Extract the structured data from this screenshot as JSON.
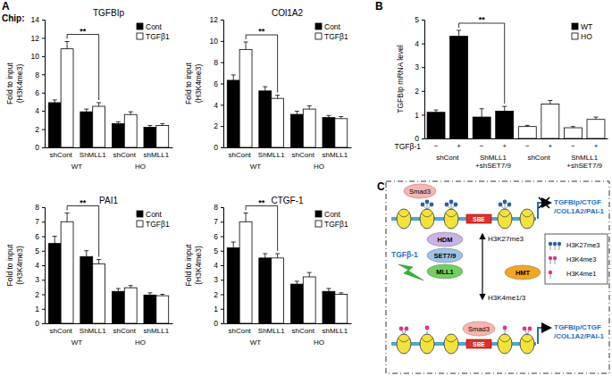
{
  "figure": {
    "panel_labels": [
      "A",
      "B",
      "C"
    ],
    "method_label": "Chip:"
  },
  "chart_data": [
    {
      "type": "bar",
      "title": "TGFBIp",
      "y_label": [
        "Fold to input",
        "(H3K4me3)"
      ],
      "categories": [
        "shCont",
        "ShMLL1",
        "shCont",
        "shMLL1"
      ],
      "groups": [
        {
          "label": "WT",
          "span": [
            0,
            1
          ]
        },
        {
          "label": "HO",
          "span": [
            2,
            3
          ]
        }
      ],
      "series": [
        {
          "name": "Cont",
          "color": "#000000",
          "values": [
            4.9,
            3.9,
            2.6,
            2.2
          ],
          "errors": [
            0.3,
            0.3,
            0.2,
            0.2
          ]
        },
        {
          "name": "TGFβ1",
          "color": "#ffffff",
          "values": [
            10.8,
            4.5,
            3.6,
            2.4
          ],
          "errors": [
            0.8,
            0.4,
            0.3,
            0.2
          ]
        }
      ],
      "ylim": [
        0,
        14
      ],
      "yticks": [
        0,
        2,
        4,
        6,
        8,
        10,
        12,
        14
      ],
      "legend": "top-right",
      "significance": [
        {
          "label": "**",
          "series": 1,
          "categories": [
            0,
            1
          ]
        }
      ]
    },
    {
      "type": "bar",
      "title": "COl1A2",
      "y_label": [
        "Fold to input",
        "(H3K4me3)"
      ],
      "categories": [
        "shCont",
        "ShMLL1",
        "shCont",
        "shMLL1"
      ],
      "groups": [
        {
          "label": "WT",
          "span": [
            0,
            1
          ]
        },
        {
          "label": "HO",
          "span": [
            2,
            3
          ]
        }
      ],
      "series": [
        {
          "name": "Cont",
          "color": "#000000",
          "values": [
            6.3,
            5.3,
            3.1,
            2.8
          ],
          "errors": [
            0.5,
            0.4,
            0.3,
            0.2
          ]
        },
        {
          "name": "TGFβ1",
          "color": "#ffffff",
          "values": [
            9.2,
            4.6,
            3.6,
            2.7
          ],
          "errors": [
            0.7,
            0.3,
            0.3,
            0.2
          ]
        }
      ],
      "ylim": [
        0,
        12
      ],
      "yticks": [
        0,
        2,
        4,
        6,
        8,
        10,
        12
      ],
      "legend": "top-right",
      "significance": [
        {
          "label": "**",
          "series": 1,
          "categories": [
            0,
            1
          ]
        }
      ]
    },
    {
      "type": "bar",
      "title": "PAI1",
      "y_label": [
        "Fold to input",
        "(H3K4me3)"
      ],
      "categories": [
        "shCont",
        "ShMLL1",
        "shCont",
        "shMLL1"
      ],
      "groups": [
        {
          "label": "WT",
          "span": [
            0,
            1
          ]
        },
        {
          "label": "HO",
          "span": [
            2,
            3
          ]
        }
      ],
      "series": [
        {
          "name": "Cont",
          "color": "#000000",
          "values": [
            5.5,
            4.6,
            2.2,
            1.95
          ],
          "errors": [
            0.5,
            0.4,
            0.2,
            0.15
          ]
        },
        {
          "name": "TGFβ1",
          "color": "#ffffff",
          "values": [
            7.0,
            4.1,
            2.45,
            1.9
          ],
          "errors": [
            0.6,
            0.3,
            0.15,
            0.1
          ]
        }
      ],
      "ylim": [
        0,
        8
      ],
      "yticks": [
        0,
        1,
        2,
        3,
        4,
        5,
        6,
        7,
        8
      ],
      "legend": "top-right",
      "significance": [
        {
          "label": "**",
          "series": 1,
          "categories": [
            0,
            1
          ]
        }
      ]
    },
    {
      "type": "bar",
      "title": "CTGF-1",
      "y_label": [
        "Fold to input",
        "(H3K4me3)"
      ],
      "categories": [
        "shCont",
        "ShMLL1",
        "shCont",
        "shMLL1"
      ],
      "groups": [
        {
          "label": "WT",
          "span": [
            0,
            1
          ]
        },
        {
          "label": "HO",
          "span": [
            2,
            3
          ]
        }
      ],
      "series": [
        {
          "name": "Cont",
          "color": "#000000",
          "values": [
            5.2,
            4.5,
            2.7,
            2.2
          ],
          "errors": [
            0.4,
            0.3,
            0.2,
            0.2
          ]
        },
        {
          "name": "TGFβ1",
          "color": "#ffffff",
          "values": [
            7.0,
            4.5,
            3.2,
            2.0
          ],
          "errors": [
            0.6,
            0.3,
            0.3,
            0.1
          ]
        }
      ],
      "ylim": [
        0,
        8
      ],
      "yticks": [
        0,
        1,
        2,
        3,
        4,
        5,
        6,
        7,
        8
      ],
      "legend": "top-right",
      "significance": [
        {
          "label": "**",
          "series": 1,
          "categories": [
            0,
            1
          ]
        }
      ]
    },
    {
      "type": "bar",
      "y_label": [
        "TGFBIp mRNA level"
      ],
      "x_row_label": "TGFβ-1",
      "categories": [
        "−",
        "+",
        "−",
        "+",
        "−",
        "+",
        "−",
        "+"
      ],
      "groups": [
        {
          "label": [
            "shCont"
          ],
          "span": [
            0,
            1
          ]
        },
        {
          "label": [
            "ShMLL1",
            "+shSET7/9"
          ],
          "span": [
            2,
            3
          ]
        },
        {
          "label": [
            "shCont"
          ],
          "span": [
            4,
            5
          ]
        },
        {
          "label": [
            "ShMLL1",
            "+shSET7/9"
          ],
          "span": [
            6,
            7
          ]
        }
      ],
      "series": [
        {
          "name": "WT",
          "color": "#000000",
          "values": [
            1.1,
            4.3,
            0.9,
            1.15,
            null,
            null,
            null,
            null
          ],
          "errors": [
            0.1,
            0.25,
            0.35,
            0.2,
            null,
            null,
            null,
            null
          ]
        },
        {
          "name": "HO",
          "color": "#ffffff",
          "values": [
            null,
            null,
            null,
            null,
            0.5,
            1.45,
            0.45,
            0.8
          ],
          "errors": [
            null,
            null,
            null,
            null,
            0.05,
            0.15,
            0.05,
            0.1
          ]
        }
      ],
      "ylim": [
        0,
        5
      ],
      "yticks": [
        0,
        1,
        2,
        3,
        4,
        5
      ],
      "legend": "top-right",
      "significance": [
        {
          "label": "**",
          "series": 0,
          "categories": [
            1,
            3
          ]
        }
      ]
    }
  ],
  "diagram": {
    "top_state": {
      "factor": "Smad3",
      "element": "SBE",
      "genes": [
        "TGFBIp/CTGF",
        "/COL1A2/PAI-1"
      ]
    },
    "bottom_state": {
      "factor": "Smad3",
      "element": "SBE",
      "genes": [
        "TGFBIp/CTGF",
        "/COL1A2/PAI-1"
      ]
    },
    "stimulus": "TGFβ-1",
    "enzymes": [
      "HDM",
      "SET7/9",
      "MLL1",
      "HMT"
    ],
    "transition_labels": [
      "H3K27me3",
      "H3K4me1/3"
    ],
    "marks_legend": [
      "H3K27me3",
      "H3K4me3",
      "H3K4me1"
    ]
  }
}
